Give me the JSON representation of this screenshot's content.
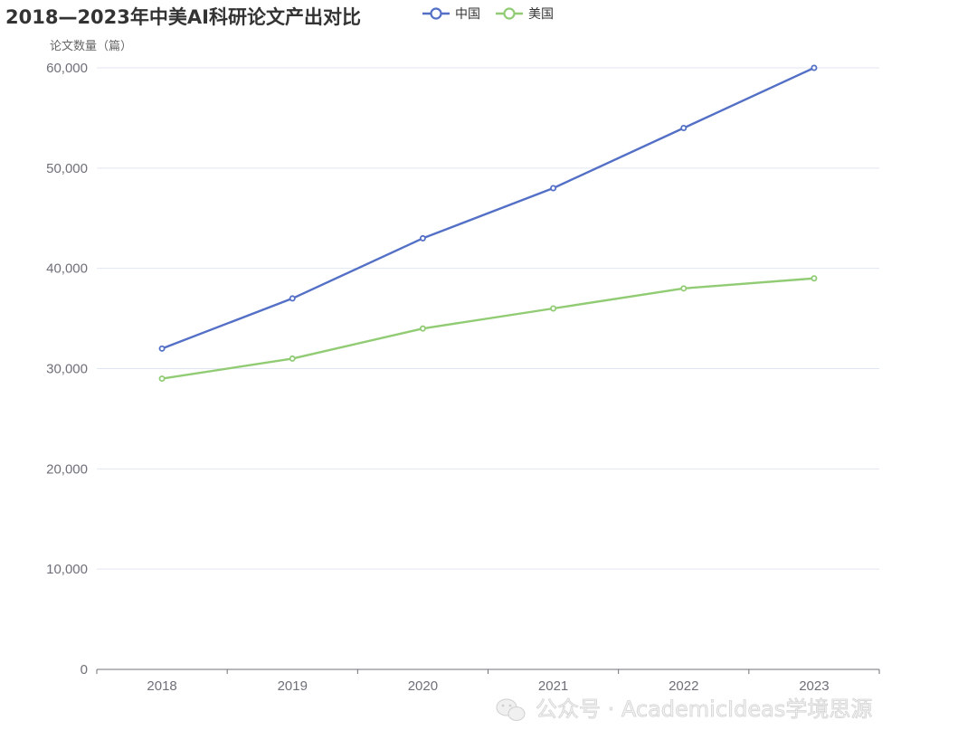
{
  "chart_data": {
    "type": "line",
    "title": "2018—2023年中美AI科研论文产出对比",
    "ylabel": "论文数量（篇）",
    "xlabel": "",
    "categories": [
      "2018",
      "2019",
      "2020",
      "2021",
      "2022",
      "2023"
    ],
    "series": [
      {
        "name": "中国",
        "color": "#5470c6",
        "values": [
          32000,
          37000,
          43000,
          48000,
          54000,
          60000
        ]
      },
      {
        "name": "美国",
        "color": "#91cc75",
        "values": [
          29000,
          31000,
          34000,
          36000,
          38000,
          39000
        ]
      }
    ],
    "ylim": [
      0,
      60000
    ],
    "yticks": [
      0,
      10000,
      20000,
      30000,
      40000,
      50000,
      60000
    ],
    "ytick_labels": [
      "0",
      "10,000",
      "20,000",
      "30,000",
      "40,000",
      "50,000",
      "60,000"
    ],
    "grid": true,
    "legend_position": "top"
  },
  "watermark": {
    "icon": "wechat-icon",
    "text": "公众号 · AcademicIdeas学境思源"
  }
}
